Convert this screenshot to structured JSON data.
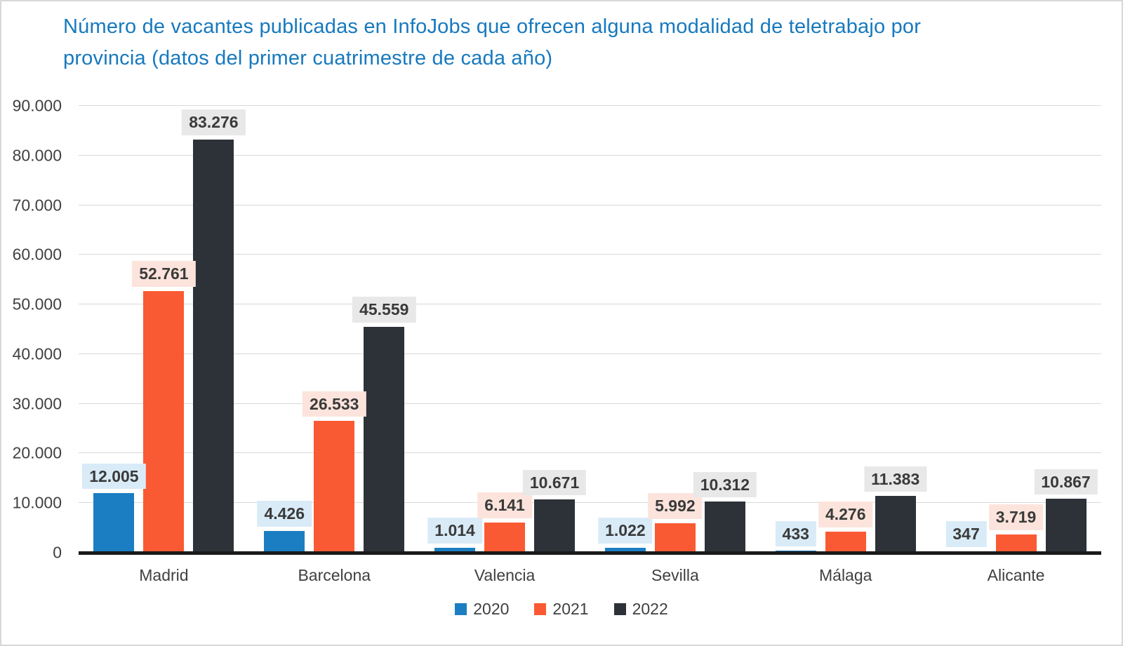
{
  "chart_data": {
    "type": "bar",
    "title": "Número de vacantes publicadas en InfoJobs que ofrecen alguna modalidad de teletrabajo por provincia (datos del primer cuatrimestre de cada año)",
    "title_color": "#1779be",
    "categories": [
      "Madrid",
      "Barcelona",
      "Valencia",
      "Sevilla",
      "Málaga",
      "Alicante"
    ],
    "series": [
      {
        "name": "2020",
        "color": "#1b7ec2",
        "label_bg": "#d9ebf7",
        "values": [
          12005,
          4426,
          1014,
          1022,
          433,
          347
        ],
        "labels": [
          "12.005",
          "4.426",
          "1.014",
          "1.022",
          "433",
          "347"
        ]
      },
      {
        "name": "2021",
        "color": "#fa5a33",
        "label_bg": "#fce4dc",
        "values": [
          52761,
          26533,
          6141,
          5992,
          4276,
          3719
        ],
        "labels": [
          "52.761",
          "26.533",
          "6.141",
          "5.992",
          "4.276",
          "3.719"
        ]
      },
      {
        "name": "2022",
        "color": "#2d3238",
        "label_bg": "#e8e8e9",
        "values": [
          83276,
          45559,
          10671,
          10312,
          11383,
          10867
        ],
        "labels": [
          "83.276",
          "45.559",
          "10.671",
          "10.312",
          "11.383",
          "10.867"
        ]
      }
    ],
    "xlabel": "",
    "ylabel": "",
    "ylim": [
      0,
      90000
    ],
    "ytick_step": 10000,
    "ytick_labels": [
      "0",
      "10.000",
      "20.000",
      "30.000",
      "40.000",
      "50.000",
      "60.000",
      "70.000",
      "80.000",
      "90.000"
    ],
    "grid": true,
    "legend_position": "bottom-center",
    "colors": {
      "grid": "#d9d9d9",
      "axis_line": "#1a1a1a",
      "tick_text": "#404040",
      "category_text": "#404040",
      "value_label_text": "#3a3a3a",
      "legend_text": "#404040",
      "frame_border": "#d8d8d8",
      "background": "#ffffff"
    }
  }
}
